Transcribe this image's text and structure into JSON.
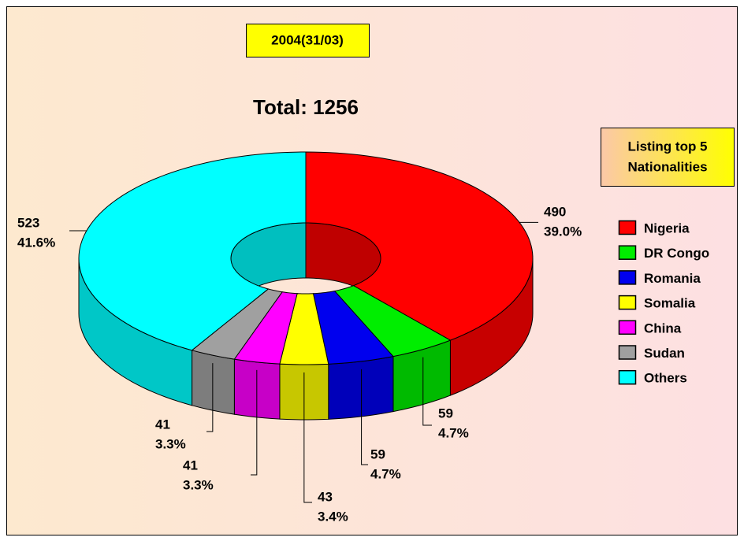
{
  "chart_data": {
    "type": "donut3d",
    "title": "2004(31/03)",
    "subtitle": "Total: 1256",
    "legend_title": [
      "Listing top 5",
      "Nationalities"
    ],
    "categories": [
      "Nigeria",
      "DR Congo",
      "Romania",
      "Somalia",
      "China",
      "Sudan",
      "Others"
    ],
    "values": [
      490,
      59,
      59,
      43,
      41,
      41,
      523
    ],
    "percent_labels": [
      "39.0%",
      "4.7%",
      "4.7%",
      "3.4%",
      "3.3%",
      "3.3%",
      "41.6%"
    ],
    "colors": [
      "#ff0000",
      "#00ee00",
      "#0000ee",
      "#ffff00",
      "#ff00ff",
      "#a0a0a0",
      "#00ffff"
    ],
    "legend": "right"
  }
}
